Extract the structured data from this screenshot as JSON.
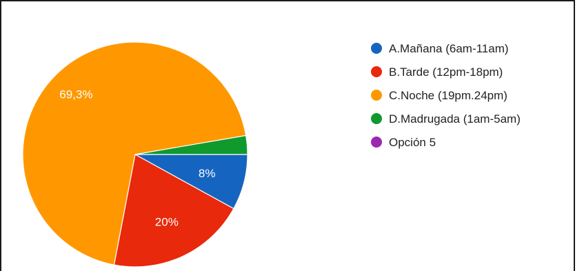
{
  "chart_data": {
    "type": "pie",
    "slices": [
      {
        "name": "A.Mañana (6am-11am)",
        "value": 8,
        "label": "8%",
        "color": "#1565c0"
      },
      {
        "name": "B.Tarde (12pm-18pm)",
        "value": 20,
        "label": "20%",
        "color": "#e8290b"
      },
      {
        "name": "C.Noche (19pm.24pm)",
        "value": 69.3,
        "label": "69,3%",
        "color": "#ff9800"
      },
      {
        "name": "D.Madrugada (1am-5am)",
        "value": 2.7,
        "label": "",
        "color": "#109a2d"
      },
      {
        "name": "Opción 5",
        "value": 0,
        "label": "",
        "color": "#9c27b0"
      }
    ],
    "start_angle": "3 o'clock, clockwise",
    "legend_position": "right"
  }
}
